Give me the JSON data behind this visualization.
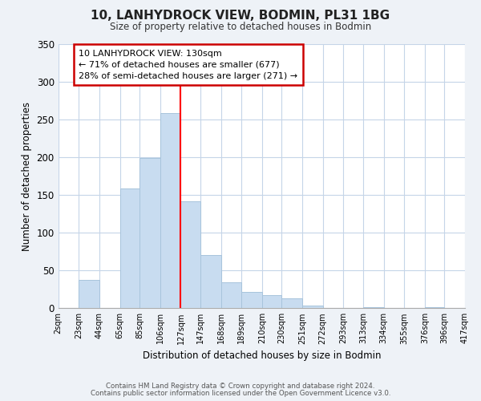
{
  "title": "10, LANHYDROCK VIEW, BODMIN, PL31 1BG",
  "subtitle": "Size of property relative to detached houses in Bodmin",
  "xlabel": "Distribution of detached houses by size in Bodmin",
  "ylabel": "Number of detached properties",
  "bar_color": "#c8dcf0",
  "bar_edge_color": "#a8c4dc",
  "vline_x": 127,
  "vline_color": "red",
  "annotation_title": "10 LANHYDROCK VIEW: 130sqm",
  "annotation_line1": "← 71% of detached houses are smaller (677)",
  "annotation_line2": "28% of semi-detached houses are larger (271) →",
  "annotation_box_color": "white",
  "annotation_box_edge": "#cc0000",
  "bin_edges": [
    2,
    23,
    44,
    65,
    85,
    106,
    127,
    147,
    168,
    189,
    210,
    230,
    251,
    272,
    293,
    313,
    334,
    355,
    376,
    396,
    417
  ],
  "bin_counts": [
    0,
    38,
    0,
    159,
    199,
    259,
    142,
    70,
    34,
    22,
    17,
    13,
    4,
    0,
    0,
    1,
    0,
    0,
    1,
    0
  ],
  "tick_labels": [
    "2sqm",
    "23sqm",
    "44sqm",
    "65sqm",
    "85sqm",
    "106sqm",
    "127sqm",
    "147sqm",
    "168sqm",
    "189sqm",
    "210sqm",
    "230sqm",
    "251sqm",
    "272sqm",
    "293sqm",
    "313sqm",
    "334sqm",
    "355sqm",
    "376sqm",
    "396sqm",
    "417sqm"
  ],
  "ylim": [
    0,
    350
  ],
  "yticks": [
    0,
    50,
    100,
    150,
    200,
    250,
    300,
    350
  ],
  "footer1": "Contains HM Land Registry data © Crown copyright and database right 2024.",
  "footer2": "Contains public sector information licensed under the Open Government Licence v3.0.",
  "background_color": "#eef2f7",
  "plot_bg_color": "#ffffff",
  "grid_color": "#c5d5e8"
}
